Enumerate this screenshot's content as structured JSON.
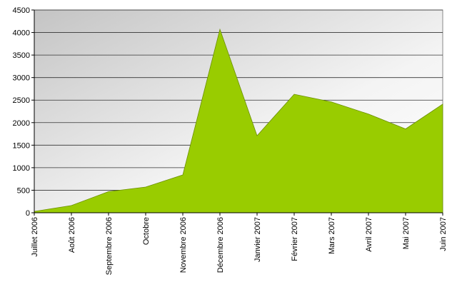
{
  "chart_data": {
    "type": "area",
    "categories": [
      "Juillet 2006",
      "Août 2006",
      "Septembre 2006",
      "Octobre",
      "Novembre 2006",
      "Décembre 2006",
      "Janvier 2007",
      "Février 2007",
      "Mars 2007",
      "Avril 2007",
      "Mai 2007",
      "Juin 2007"
    ],
    "values": [
      30,
      160,
      470,
      570,
      840,
      4070,
      1710,
      2630,
      2460,
      2190,
      1860,
      2410
    ],
    "color": "#99cc00",
    "ylim": [
      0,
      4500
    ],
    "yticks": [
      0,
      500,
      1000,
      1500,
      2000,
      2500,
      3000,
      3500,
      4000,
      4500
    ],
    "grid": true
  }
}
